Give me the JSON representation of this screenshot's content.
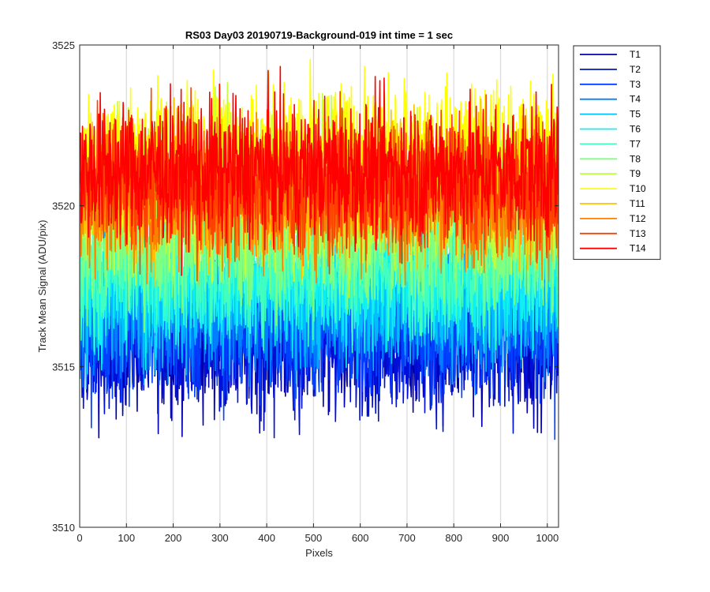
{
  "chart_data": {
    "type": "line",
    "title": "RS03 Day03 20190719-Background-019 int time = 1 sec",
    "xlabel": "Pixels",
    "ylabel": "Track Mean Signal (ADU/pix)",
    "xlim": [
      0,
      1024
    ],
    "ylim": [
      3510,
      3525
    ],
    "xticks": [
      0,
      100,
      200,
      300,
      400,
      500,
      600,
      700,
      800,
      900,
      1000
    ],
    "yticks": [
      3510,
      3515,
      3520,
      3525
    ],
    "xgrid": true,
    "ygrid": false,
    "legend_position": "outside-top-right",
    "n_points": 1024,
    "series": [
      {
        "name": "T1",
        "color": "#0000B0",
        "mean": 3515.9,
        "noise_sd": 1.2
      },
      {
        "name": "T2",
        "color": "#0010D8",
        "mean": 3515.9,
        "noise_sd": 1.2
      },
      {
        "name": "T3",
        "color": "#0040FF",
        "mean": 3516.3,
        "noise_sd": 1.2
      },
      {
        "name": "T4",
        "color": "#0080FF",
        "mean": 3516.9,
        "noise_sd": 1.1
      },
      {
        "name": "T5",
        "color": "#00C0FF",
        "mean": 3517.3,
        "noise_sd": 1.1
      },
      {
        "name": "T6",
        "color": "#10F0F0",
        "mean": 3517.8,
        "noise_sd": 1.1
      },
      {
        "name": "T7",
        "color": "#40FFC0",
        "mean": 3518.2,
        "noise_sd": 1.1
      },
      {
        "name": "T8",
        "color": "#80FF80",
        "mean": 3519.0,
        "noise_sd": 1.1
      },
      {
        "name": "T9",
        "color": "#C0FF40",
        "mean": 3520.3,
        "noise_sd": 1.2
      },
      {
        "name": "T10",
        "color": "#FFFF00",
        "mean": 3521.6,
        "noise_sd": 1.1
      },
      {
        "name": "T11",
        "color": "#FFC000",
        "mean": 3520.4,
        "noise_sd": 1.1
      },
      {
        "name": "T12",
        "color": "#FF8000",
        "mean": 3520.3,
        "noise_sd": 1.1
      },
      {
        "name": "T13",
        "color": "#FF4000",
        "mean": 3520.6,
        "noise_sd": 1.1
      },
      {
        "name": "T14",
        "color": "#FF0000",
        "mean": 3521.1,
        "noise_sd": 1.1
      }
    ]
  }
}
